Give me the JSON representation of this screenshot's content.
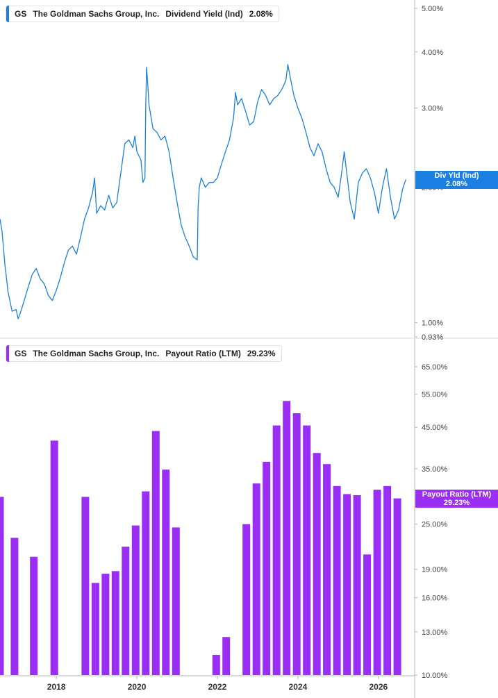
{
  "colors": {
    "line": "#1a7fe0",
    "bar": "#9a2ef5",
    "axis": "#b5b5b5"
  },
  "top_legend": {
    "ticker": "GS",
    "company": "The Goldman Sachs Group, Inc.",
    "metric": "Dividend Yield (Ind)",
    "value": "2.08%"
  },
  "bottom_legend": {
    "ticker": "GS",
    "company": "The Goldman Sachs Group, Inc.",
    "metric": "Payout Ratio (LTM)",
    "value": "29.23%"
  },
  "top_tag": {
    "label": "Div Yld (Ind)",
    "value": "2.08%"
  },
  "bottom_tag": {
    "label": "Payout Ratio (LTM)",
    "value": "29.23%"
  },
  "chart_data": [
    {
      "type": "line",
      "series": [
        {
          "name": "Dividend Yield (Ind)"
        }
      ],
      "scale": "log",
      "ylim": [
        0.93,
        5.0
      ],
      "yticks": [
        "5.00%",
        "4.00%",
        "3.00%",
        "2.00%",
        "1.00%",
        "0.93%"
      ],
      "ytick_values": [
        5.0,
        4.0,
        3.0,
        2.0,
        1.0,
        0.93
      ],
      "xlim": [
        2016.6,
        2026.9
      ],
      "points": [
        [
          2016.6,
          1.7
        ],
        [
          2016.65,
          1.6
        ],
        [
          2016.72,
          1.35
        ],
        [
          2016.8,
          1.17
        ],
        [
          2016.9,
          1.06
        ],
        [
          2017.0,
          1.07
        ],
        [
          2017.05,
          1.02
        ],
        [
          2017.12,
          1.06
        ],
        [
          2017.2,
          1.12
        ],
        [
          2017.3,
          1.2
        ],
        [
          2017.4,
          1.28
        ],
        [
          2017.5,
          1.32
        ],
        [
          2017.6,
          1.25
        ],
        [
          2017.7,
          1.22
        ],
        [
          2017.8,
          1.15
        ],
        [
          2017.9,
          1.12
        ],
        [
          2018.0,
          1.18
        ],
        [
          2018.1,
          1.26
        ],
        [
          2018.2,
          1.36
        ],
        [
          2018.3,
          1.45
        ],
        [
          2018.4,
          1.48
        ],
        [
          2018.5,
          1.42
        ],
        [
          2018.6,
          1.55
        ],
        [
          2018.7,
          1.7
        ],
        [
          2018.8,
          1.8
        ],
        [
          2018.9,
          1.95
        ],
        [
          2018.95,
          2.1
        ],
        [
          2019.0,
          1.75
        ],
        [
          2019.1,
          1.82
        ],
        [
          2019.2,
          1.78
        ],
        [
          2019.3,
          1.92
        ],
        [
          2019.4,
          1.8
        ],
        [
          2019.5,
          1.85
        ],
        [
          2019.6,
          2.15
        ],
        [
          2019.7,
          2.5
        ],
        [
          2019.8,
          2.55
        ],
        [
          2019.9,
          2.45
        ],
        [
          2019.95,
          2.6
        ],
        [
          2020.0,
          2.4
        ],
        [
          2020.1,
          2.3
        ],
        [
          2020.15,
          2.05
        ],
        [
          2020.2,
          2.1
        ],
        [
          2020.22,
          3.0
        ],
        [
          2020.24,
          3.7
        ],
        [
          2020.27,
          3.4
        ],
        [
          2020.3,
          3.05
        ],
        [
          2020.4,
          2.7
        ],
        [
          2020.5,
          2.65
        ],
        [
          2020.6,
          2.55
        ],
        [
          2020.7,
          2.6
        ],
        [
          2020.8,
          2.4
        ],
        [
          2020.9,
          2.1
        ],
        [
          2021.0,
          1.85
        ],
        [
          2021.1,
          1.65
        ],
        [
          2021.2,
          1.55
        ],
        [
          2021.3,
          1.48
        ],
        [
          2021.4,
          1.4
        ],
        [
          2021.5,
          1.38
        ],
        [
          2021.52,
          1.8
        ],
        [
          2021.55,
          2.0
        ],
        [
          2021.6,
          2.1
        ],
        [
          2021.7,
          2.0
        ],
        [
          2021.8,
          2.05
        ],
        [
          2021.9,
          2.05
        ],
        [
          2022.0,
          2.1
        ],
        [
          2022.1,
          2.25
        ],
        [
          2022.2,
          2.4
        ],
        [
          2022.3,
          2.55
        ],
        [
          2022.4,
          2.85
        ],
        [
          2022.45,
          3.25
        ],
        [
          2022.5,
          3.05
        ],
        [
          2022.6,
          3.15
        ],
        [
          2022.7,
          2.95
        ],
        [
          2022.8,
          2.75
        ],
        [
          2022.9,
          2.8
        ],
        [
          2023.0,
          3.1
        ],
        [
          2023.1,
          3.3
        ],
        [
          2023.2,
          3.2
        ],
        [
          2023.3,
          3.05
        ],
        [
          2023.4,
          3.15
        ],
        [
          2023.5,
          3.2
        ],
        [
          2023.6,
          3.3
        ],
        [
          2023.7,
          3.45
        ],
        [
          2023.75,
          3.75
        ],
        [
          2023.8,
          3.55
        ],
        [
          2023.9,
          3.2
        ],
        [
          2024.0,
          3.0
        ],
        [
          2024.1,
          2.85
        ],
        [
          2024.2,
          2.65
        ],
        [
          2024.3,
          2.45
        ],
        [
          2024.4,
          2.35
        ],
        [
          2024.5,
          2.5
        ],
        [
          2024.6,
          2.4
        ],
        [
          2024.7,
          2.2
        ],
        [
          2024.8,
          2.05
        ],
        [
          2024.9,
          2.0
        ],
        [
          2025.0,
          1.9
        ],
        [
          2025.1,
          2.2
        ],
        [
          2025.15,
          2.4
        ],
        [
          2025.2,
          2.2
        ],
        [
          2025.3,
          1.85
        ],
        [
          2025.4,
          1.7
        ],
        [
          2025.5,
          2.05
        ],
        [
          2025.6,
          2.15
        ],
        [
          2025.7,
          2.2
        ],
        [
          2025.8,
          2.1
        ],
        [
          2025.9,
          1.95
        ],
        [
          2026.0,
          1.75
        ],
        [
          2026.1,
          2.0
        ],
        [
          2026.2,
          2.2
        ],
        [
          2026.3,
          1.9
        ],
        [
          2026.4,
          1.7
        ],
        [
          2026.5,
          1.78
        ],
        [
          2026.6,
          1.98
        ],
        [
          2026.68,
          2.08
        ]
      ]
    },
    {
      "type": "bar",
      "series": [
        {
          "name": "Payout Ratio (LTM)"
        }
      ],
      "scale": "log",
      "ylim": [
        10.0,
        65.0
      ],
      "yticks": [
        "65.00%",
        "55.00%",
        "45.00%",
        "35.00%",
        "25.00%",
        "19.00%",
        "16.00%",
        "13.00%",
        "10.00%"
      ],
      "ytick_values": [
        65,
        55,
        45,
        35,
        25,
        19,
        16,
        13,
        10
      ],
      "xlim": [
        2016.6,
        2026.9
      ],
      "xticks": [
        "2018",
        "2020",
        "2022",
        "2024",
        "2026"
      ],
      "xtick_values": [
        2018,
        2020,
        2022,
        2024,
        2026
      ],
      "bars": [
        [
          2016.6,
          29.5
        ],
        [
          2016.96,
          23.0
        ],
        [
          2017.44,
          20.5
        ],
        [
          2017.95,
          41.5
        ],
        [
          2018.72,
          29.5
        ],
        [
          2018.97,
          17.5
        ],
        [
          2019.22,
          18.5
        ],
        [
          2019.47,
          18.8
        ],
        [
          2019.72,
          21.8
        ],
        [
          2019.97,
          24.8
        ],
        [
          2020.22,
          30.5
        ],
        [
          2020.47,
          44.0
        ],
        [
          2020.72,
          34.8
        ],
        [
          2020.97,
          24.5
        ],
        [
          2021.97,
          11.3
        ],
        [
          2022.22,
          12.6
        ],
        [
          2022.72,
          25.0
        ],
        [
          2022.97,
          32.0
        ],
        [
          2023.22,
          36.5
        ],
        [
          2023.47,
          45.5
        ],
        [
          2023.72,
          52.8
        ],
        [
          2023.97,
          49.0
        ],
        [
          2024.22,
          45.5
        ],
        [
          2024.47,
          38.5
        ],
        [
          2024.72,
          36.0
        ],
        [
          2024.97,
          31.5
        ],
        [
          2025.22,
          30.0
        ],
        [
          2025.47,
          29.8
        ],
        [
          2025.72,
          20.8
        ],
        [
          2025.97,
          30.8
        ],
        [
          2026.22,
          31.5
        ],
        [
          2026.47,
          29.23
        ]
      ]
    }
  ]
}
